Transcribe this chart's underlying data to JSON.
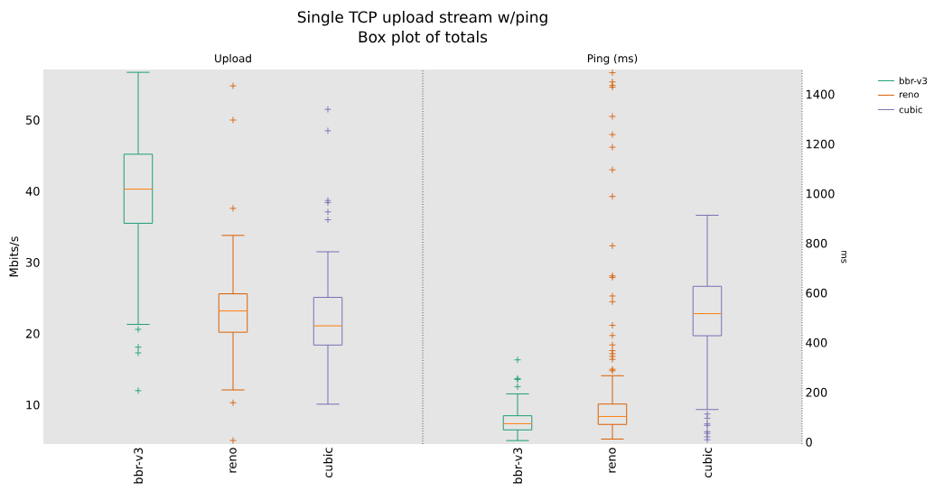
{
  "chart_data": [
    {
      "type": "box",
      "title": "Upload",
      "ylabel": "Mbits/s",
      "annotations": [
        "Single TCP upload stream w/ping",
        "Box plot of totals"
      ],
      "categories": [
        "bbr-v3",
        "reno",
        "cubic"
      ],
      "marker": "cross",
      "legend": false,
      "grid": false,
      "ylim": [
        4.5,
        57.1
      ],
      "yticks": [
        10,
        20,
        30,
        40,
        50
      ],
      "series": [
        {
          "color": "#1b9e77",
          "boxes": [
            {
              "low": 21.3,
              "q1": 35.5,
              "median": 40.3,
              "q3": 45.2,
              "high": 56.7,
              "outliers": [
                20.6,
                18.1,
                17.3,
                12.0
              ]
            },
            null,
            null
          ]
        },
        {
          "color": "#d95f02",
          "boxes": [
            null,
            {
              "low": 12.1,
              "q1": 20.2,
              "median": 23.2,
              "q3": 25.6,
              "high": 33.8,
              "outliers": [
                54.8,
                50.0,
                37.6,
                10.3,
                5.0
              ]
            },
            null
          ]
        },
        {
          "color": "#7570b3",
          "boxes": [
            null,
            null,
            {
              "low": 10.1,
              "q1": 18.4,
              "median": 21.1,
              "q3": 25.1,
              "high": 31.5,
              "outliers": [
                51.5,
                48.5,
                38.7,
                38.4,
                37.1,
                36.0
              ]
            }
          ]
        }
      ]
    },
    {
      "type": "box",
      "title": "Ping (ms)",
      "ylabel": "ms",
      "categories": [
        "bbr-v3",
        "reno",
        "cubic"
      ],
      "marker": "cross",
      "legend": "right",
      "grid": false,
      "ylim": [
        -8,
        1500
      ],
      "yticks": [
        0,
        200,
        400,
        600,
        800,
        1000,
        1200,
        1400
      ],
      "series": [
        {
          "name": "bbr-v3",
          "color": "#1b9e77",
          "boxes": [
            {
              "low": 6,
              "q1": 49,
              "median": 74,
              "q3": 106,
              "high": 194,
              "outliers": [
                223,
                252,
                256,
                331
              ]
            },
            null,
            null
          ]
        },
        {
          "name": "reno",
          "color": "#d95f02",
          "boxes": [
            null,
            {
              "low": 12,
              "q1": 71,
              "median": 103,
              "q3": 153,
              "high": 267,
              "outliers": [
                287,
                293,
                333,
                345,
                356,
                368,
                391,
                429,
                470,
                565,
                588,
                663,
                669,
                790,
                989,
                1096,
                1187,
                1238,
                1311,
                1429,
                1436,
                1450,
                1487
              ]
            },
            null
          ]
        },
        {
          "name": "cubic",
          "color": "#7570b3",
          "boxes": [
            null,
            null,
            {
              "low": 131,
              "q1": 428,
              "median": 517,
              "q3": 627,
              "high": 913,
              "outliers": [
                113,
                96,
                73,
                67,
                42,
                35,
                21,
                9
              ]
            }
          ]
        }
      ]
    }
  ]
}
